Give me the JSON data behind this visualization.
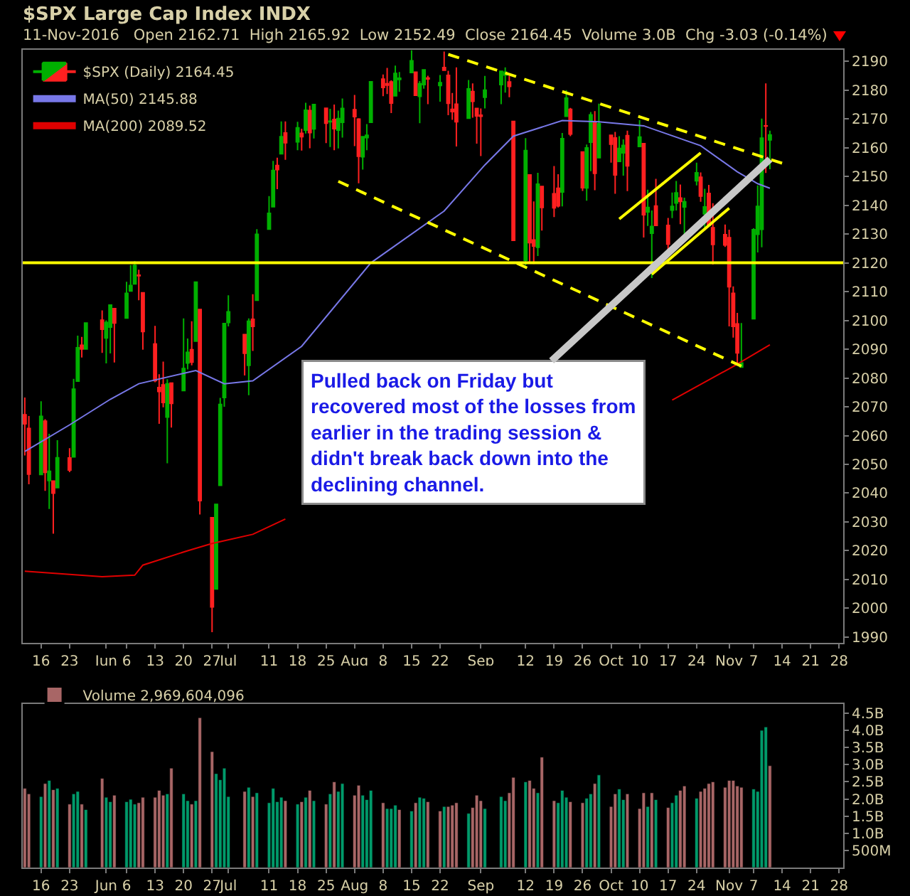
{
  "chart_data": [
    {
      "type": "candlestick",
      "title": "$SPX Large Cap Index INDX",
      "subtitle": "11-Nov-2016   Open 2162.71  High 2165.92  Low 2152.49  Close 2164.45  Volume 3.0B  Chg -3.03 (-0.14%)",
      "x": [
        "2016-05-12",
        "2016-05-13",
        "2016-05-16",
        "2016-05-17",
        "2016-05-18",
        "2016-05-19",
        "2016-05-20",
        "2016-05-23",
        "2016-05-24",
        "2016-05-25",
        "2016-05-26",
        "2016-05-27",
        "2016-05-31",
        "2016-06-01",
        "2016-06-02",
        "2016-06-03",
        "2016-06-06",
        "2016-06-07",
        "2016-06-08",
        "2016-06-09",
        "2016-06-10",
        "2016-06-13",
        "2016-06-14",
        "2016-06-15",
        "2016-06-16",
        "2016-06-17",
        "2016-06-20",
        "2016-06-21",
        "2016-06-22",
        "2016-06-23",
        "2016-06-24",
        "2016-06-27",
        "2016-06-28",
        "2016-06-29",
        "2016-06-30",
        "2016-07-01",
        "2016-07-05",
        "2016-07-06",
        "2016-07-07",
        "2016-07-08",
        "2016-07-11",
        "2016-07-12",
        "2016-07-13",
        "2016-07-14",
        "2016-07-15",
        "2016-07-18",
        "2016-07-19",
        "2016-07-20",
        "2016-07-21",
        "2016-07-22",
        "2016-07-25",
        "2016-07-26",
        "2016-07-27",
        "2016-07-28",
        "2016-07-29",
        "2016-08-01",
        "2016-08-02",
        "2016-08-03",
        "2016-08-04",
        "2016-08-05",
        "2016-08-08",
        "2016-08-09",
        "2016-08-10",
        "2016-08-11",
        "2016-08-12",
        "2016-08-15",
        "2016-08-16",
        "2016-08-17",
        "2016-08-18",
        "2016-08-19",
        "2016-08-22",
        "2016-08-23",
        "2016-08-24",
        "2016-08-25",
        "2016-08-26",
        "2016-08-29",
        "2016-08-30",
        "2016-08-31",
        "2016-09-01",
        "2016-09-02",
        "2016-09-06",
        "2016-09-07",
        "2016-09-08",
        "2016-09-09",
        "2016-09-12",
        "2016-09-13",
        "2016-09-14",
        "2016-09-15",
        "2016-09-16",
        "2016-09-19",
        "2016-09-20",
        "2016-09-21",
        "2016-09-22",
        "2016-09-23",
        "2016-09-26",
        "2016-09-27",
        "2016-09-28",
        "2016-09-29",
        "2016-09-30",
        "2016-10-03",
        "2016-10-04",
        "2016-10-05",
        "2016-10-06",
        "2016-10-07",
        "2016-10-10",
        "2016-10-11",
        "2016-10-12",
        "2016-10-13",
        "2016-10-14",
        "2016-10-17",
        "2016-10-18",
        "2016-10-19",
        "2016-10-20",
        "2016-10-21",
        "2016-10-24",
        "2016-10-25",
        "2016-10-26",
        "2016-10-27",
        "2016-10-28",
        "2016-10-31",
        "2016-11-01",
        "2016-11-02",
        "2016-11-03",
        "2016-11-04",
        "2016-11-07",
        "2016-11-08",
        "2016-11-09",
        "2016-11-10",
        "2016-11-11"
      ],
      "series": [
        {
          "name": "$SPX (Daily) 2164.45",
          "ohlc": [
            [
              2067.2,
              2073.2,
              2053.1,
              2064.1
            ],
            [
              2062.5,
              2066.8,
              2043.1,
              2046.6
            ],
            [
              2046.5,
              2071.9,
              2046.5,
              2066.7
            ],
            [
              2065.0,
              2065.7,
              2040.8,
              2047.2
            ],
            [
              2044.4,
              2060.6,
              2034.5,
              2047.6
            ],
            [
              2044.2,
              2044.2,
              2025.9,
              2040.0
            ],
            [
              2041.9,
              2058.4,
              2041.9,
              2052.3
            ],
            [
              2052.2,
              2055.6,
              2047.3,
              2048.0
            ],
            [
              2052.6,
              2079.7,
              2052.6,
              2076.1
            ],
            [
              2078.9,
              2094.7,
              2078.9,
              2090.5
            ],
            [
              2091.4,
              2094.3,
              2087.1,
              2090.1
            ],
            [
              2090.1,
              2099.1,
              2090.1,
              2099.1
            ],
            [
              2100.1,
              2103.5,
              2088.7,
              2096.9
            ],
            [
              2093.9,
              2100.0,
              2085.1,
              2099.3
            ],
            [
              2097.7,
              2105.3,
              2088.5,
              2105.3
            ],
            [
              2104.1,
              2104.1,
              2085.4,
              2099.1
            ],
            [
              2100.8,
              2113.4,
              2100.8,
              2109.4
            ],
            [
              2110.2,
              2119.2,
              2110.2,
              2112.1
            ],
            [
              2112.7,
              2120.6,
              2112.7,
              2119.1
            ],
            [
              2115.7,
              2117.6,
              2107.0,
              2115.5
            ],
            [
              2109.6,
              2109.6,
              2089.8,
              2096.1
            ],
            [
              2091.8,
              2098.1,
              2078.5,
              2079.1
            ],
            [
              2076.7,
              2081.3,
              2064.1,
              2075.3
            ],
            [
              2077.6,
              2085.7,
              2069.8,
              2071.5
            ],
            [
              2066.4,
              2079.6,
              2050.4,
              2078.0
            ],
            [
              2078.2,
              2078.2,
              2062.8,
              2071.2
            ],
            [
              2075.6,
              2100.7,
              2075.6,
              2083.3
            ],
            [
              2085.2,
              2093.7,
              2083.0,
              2088.9
            ],
            [
              2089.8,
              2099.7,
              2084.4,
              2085.5
            ],
            [
              2092.8,
              2113.3,
              2092.8,
              2113.3
            ],
            [
              2103.8,
              2103.8,
              2032.6,
              2037.4
            ],
            [
              2031.5,
              2031.5,
              1991.7,
              2000.5
            ],
            [
              2006.7,
              2036.1,
              2006.7,
              2036.1
            ],
            [
              2042.7,
              2073.1,
              2042.7,
              2070.8
            ],
            [
              2073.2,
              2098.9,
              2070.0,
              2098.9
            ],
            [
              2099.3,
              2108.7,
              2097.9,
              2103.0
            ],
            [
              2095.1,
              2095.1,
              2080.9,
              2088.6
            ],
            [
              2084.4,
              2100.7,
              2074.0,
              2099.7
            ],
            [
              2100.4,
              2109.1,
              2089.4,
              2097.9
            ],
            [
              2107.0,
              2131.7,
              2107.0,
              2129.9
            ],
            [
              2131.7,
              2143.2,
              2131.7,
              2137.2
            ],
            [
              2139.5,
              2155.4,
              2139.5,
              2152.1
            ],
            [
              2153.8,
              2156.5,
              2145.6,
              2152.4
            ],
            [
              2157.9,
              2169.1,
              2157.9,
              2163.8
            ],
            [
              2165.1,
              2169.1,
              2155.8,
              2161.7
            ],
            [
              2162.0,
              2169.0,
              2159.1,
              2166.9
            ],
            [
              2165.0,
              2166.6,
              2159.0,
              2163.8
            ],
            [
              2166.1,
              2175.6,
              2164.9,
              2173.0
            ],
            [
              2172.9,
              2174.6,
              2159.8,
              2165.2
            ],
            [
              2166.5,
              2175.1,
              2163.2,
              2175.0
            ],
            [
              2173.7,
              2173.7,
              2161.6,
              2168.5
            ],
            [
              2169.0,
              2173.5,
              2160.2,
              2169.2
            ],
            [
              2169.8,
              2175.0,
              2159.1,
              2166.6
            ],
            [
              2166.1,
              2172.9,
              2159.7,
              2170.1
            ],
            [
              2168.8,
              2177.1,
              2163.5,
              2173.6
            ],
            [
              2173.2,
              2178.3,
              2160.5,
              2170.8
            ],
            [
              2169.9,
              2170.2,
              2147.6,
              2157.0
            ],
            [
              2156.8,
              2163.8,
              2152.4,
              2163.8
            ],
            [
              2163.5,
              2168.2,
              2159.1,
              2164.3
            ],
            [
              2168.8,
              2182.9,
              2168.8,
              2182.9
            ],
            [
              2183.8,
              2185.4,
              2177.9,
              2180.9
            ],
            [
              2182.2,
              2187.7,
              2178.6,
              2181.7
            ],
            [
              2182.8,
              2183.4,
              2172.0,
              2175.5
            ],
            [
              2178.0,
              2188.5,
              2178.0,
              2185.8
            ],
            [
              2183.7,
              2186.3,
              2179.4,
              2184.1
            ],
            [
              2186.1,
              2193.8,
              2186.1,
              2190.2
            ],
            [
              2186.2,
              2186.2,
              2178.1,
              2178.2
            ],
            [
              2177.8,
              2183.1,
              2168.5,
              2182.2
            ],
            [
              2181.9,
              2187.0,
              2180.5,
              2187.0
            ],
            [
              2184.2,
              2185.0,
              2175.1,
              2183.9
            ],
            [
              2181.6,
              2185.2,
              2176.0,
              2182.6
            ],
            [
              2187.8,
              2193.4,
              2186.8,
              2186.9
            ],
            [
              2185.1,
              2186.7,
              2171.3,
              2175.4
            ],
            [
              2173.3,
              2179.0,
              2169.7,
              2172.5
            ],
            [
              2175.1,
              2187.9,
              2160.4,
              2169.0
            ],
            [
              2170.2,
              2183.5,
              2170.2,
              2180.4
            ],
            [
              2179.5,
              2182.3,
              2170.4,
              2176.1
            ],
            [
              2173.6,
              2173.6,
              2161.4,
              2171.0
            ],
            [
              2171.3,
              2173.6,
              2157.1,
              2170.9
            ],
            [
              2177.5,
              2184.9,
              2173.6,
              2180.0
            ],
            [
              2181.9,
              2186.6,
              2175.1,
              2186.5
            ],
            [
              2185.2,
              2187.9,
              2179.1,
              2186.2
            ],
            [
              2182.8,
              2184.9,
              2177.5,
              2181.3
            ],
            [
              2169.1,
              2169.1,
              2127.8,
              2127.8
            ],
            [
              2120.9,
              2163.3,
              2119.1,
              2159.0
            ],
            [
              2150.5,
              2150.5,
              2120.3,
              2127.0
            ],
            [
              2127.9,
              2141.3,
              2119.6,
              2125.8
            ],
            [
              2125.4,
              2151.3,
              2122.4,
              2147.3
            ],
            [
              2146.5,
              2146.5,
              2131.2,
              2139.2
            ],
            [
              2144.0,
              2153.6,
              2135.9,
              2139.1
            ],
            [
              2145.9,
              2150.8,
              2139.2,
              2139.8
            ],
            [
              2144.6,
              2165.1,
              2139.6,
              2163.1
            ],
            [
              2170.9,
              2180.0,
              2170.9,
              2177.2
            ],
            [
              2173.3,
              2173.8,
              2164.0,
              2164.7
            ],
            [
              2158.5,
              2158.5,
              2145.0,
              2146.1
            ],
            [
              2146.0,
              2161.1,
              2141.6,
              2159.9
            ],
            [
              2161.9,
              2172.4,
              2151.8,
              2171.4
            ],
            [
              2168.9,
              2172.7,
              2145.2,
              2151.1
            ],
            [
              2156.5,
              2175.3,
              2156.5,
              2168.3
            ],
            [
              2164.3,
              2164.4,
              2154.8,
              2161.2
            ],
            [
              2163.4,
              2165.5,
              2144.0,
              2150.5
            ],
            [
              2155.2,
              2164.0,
              2155.2,
              2159.7
            ],
            [
              2158.2,
              2162.9,
              2150.3,
              2160.8
            ],
            [
              2164.2,
              2165.9,
              2144.9,
              2153.7
            ],
            [
              2160.4,
              2169.6,
              2160.4,
              2163.7
            ],
            [
              2161.4,
              2161.6,
              2128.8,
              2136.7
            ],
            [
              2137.7,
              2145.4,
              2132.8,
              2139.2
            ],
            [
              2130.3,
              2138.2,
              2114.7,
              2132.6
            ],
            [
              2139.7,
              2149.2,
              2133.0,
              2133.0
            ],
            [
              2133.0,
              2135.6,
              2124.4,
              2126.5
            ],
            [
              2138.3,
              2144.4,
              2135.5,
              2139.6
            ],
            [
              2140.8,
              2148.4,
              2138.2,
              2144.3
            ],
            [
              2142.5,
              2147.2,
              2133.4,
              2141.3
            ],
            [
              2139.4,
              2142.6,
              2130.1,
              2141.2
            ],
            [
              2148.5,
              2154.8,
              2146.9,
              2151.3
            ],
            [
              2149.7,
              2151.4,
              2141.2,
              2143.2
            ],
            [
              2137.0,
              2145.7,
              2131.6,
              2139.4
            ],
            [
              2144.1,
              2147.1,
              2132.5,
              2133.0
            ],
            [
              2132.2,
              2140.7,
              2119.4,
              2126.4
            ],
            [
              2129.8,
              2133.3,
              2125.5,
              2126.2
            ],
            [
              2128.7,
              2131.5,
              2097.9,
              2111.7
            ],
            [
              2109.4,
              2111.8,
              2094.0,
              2097.9
            ],
            [
              2098.8,
              2102.6,
              2085.2,
              2088.7
            ],
            [
              2083.8,
              2099.1,
              2083.8,
              2085.2
            ],
            [
              2100.6,
              2132.0,
              2100.6,
              2131.5
            ],
            [
              2129.9,
              2146.9,
              2123.6,
              2139.6
            ],
            [
              2131.6,
              2170.1,
              2125.4,
              2163.3
            ],
            [
              2167.6,
              2182.3,
              2151.2,
              2167.5
            ],
            [
              2162.71,
              2165.92,
              2152.49,
              2164.45
            ]
          ],
          "colors": [
            "#ff2020",
            "#ff2020",
            "#00b000",
            "#ff2020",
            "#00b000",
            "#ff2020",
            "#00b000",
            "#ff2020",
            "#00b000",
            "#00b000",
            "#ff2020",
            "#00b000",
            "#ff2020",
            "#00b000",
            "#00b000",
            "#ff2020",
            "#00b000",
            "#00b000",
            "#00b000",
            "#ff2020",
            "#ff2020",
            "#ff2020",
            "#ff2020",
            "#ff2020",
            "#00b000",
            "#ff2020",
            "#00b000",
            "#00b000",
            "#ff2020",
            "#00b000",
            "#ff2020",
            "#ff2020",
            "#00b000",
            "#00b000",
            "#00b000",
            "#00b000",
            "#ff2020",
            "#00b000",
            "#ff2020",
            "#00b000",
            "#00b000",
            "#00b000",
            "#ff2020",
            "#00b000",
            "#ff2020",
            "#00b000",
            "#ff2020",
            "#00b000",
            "#ff2020",
            "#00b000",
            "#ff2020",
            "#00b000",
            "#ff2020",
            "#00b000",
            "#00b000",
            "#ff2020",
            "#ff2020",
            "#00b000",
            "#00b000",
            "#00b000",
            "#ff2020",
            "#ff2020",
            "#ff2020",
            "#00b000",
            "#00b000",
            "#00b000",
            "#ff2020",
            "#00b000",
            "#00b000",
            "#ff2020",
            "#00b000",
            "#ff2020",
            "#ff2020",
            "#ff2020",
            "#ff2020",
            "#00b000",
            "#ff2020",
            "#ff2020",
            "#ff2020",
            "#00b000",
            "#00b000",
            "#00b000",
            "#ff2020",
            "#ff2020",
            "#00b000",
            "#ff2020",
            "#ff2020",
            "#00b000",
            "#ff2020",
            "#ff2020",
            "#ff2020",
            "#00b000",
            "#00b000",
            "#ff2020",
            "#ff2020",
            "#00b000",
            "#00b000",
            "#ff2020",
            "#00b000",
            "#ff2020",
            "#ff2020",
            "#00b000",
            "#00b000",
            "#ff2020",
            "#00b000",
            "#ff2020",
            "#00b000",
            "#00b000",
            "#ff2020",
            "#ff2020",
            "#00b000",
            "#00b000",
            "#ff2020",
            "#00b000",
            "#00b000",
            "#ff2020",
            "#00b000",
            "#ff2020",
            "#ff2020",
            "#ff2020",
            "#ff2020",
            "#ff2020",
            "#ff2020",
            "#00b000",
            "#00b000",
            "#00b000",
            "#00b000",
            "#ff2020",
            "#00b000"
          ]
        },
        {
          "type": "line",
          "name": "MA(50) 2145.88",
          "color": "#7878e8",
          "x": [
            "2016-05-12",
            "2016-05-23",
            "2016-06-02",
            "2016-06-09",
            "2016-06-23",
            "2016-06-30",
            "2016-07-07",
            "2016-07-19",
            "2016-08-05",
            "2016-08-23",
            "2016-09-02",
            "2016-09-09",
            "2016-09-21",
            "2016-09-30",
            "2016-10-11",
            "2016-10-25",
            "2016-11-03",
            "2016-11-08",
            "2016-11-11"
          ],
          "values": [
            2054.5,
            2063.7,
            2072.6,
            2078,
            2082.6,
            2078,
            2079,
            2091,
            2120,
            2138,
            2154,
            2164,
            2169.4,
            2169,
            2167.6,
            2160.7,
            2151.6,
            2147.5,
            2145.9
          ]
        },
        {
          "type": "line",
          "name": "MA(200) 2089.52",
          "color": "#e00000",
          "x": [
            "2016-05-12",
            "2016-05-31",
            "2016-06-08",
            "2016-06-10",
            "2016-06-21",
            "2016-06-27",
            "2016-07-07",
            "2016-07-15",
            "2016-08-15",
            "2016-10-18",
            "2016-11-02",
            "2016-11-11"
          ],
          "values": [
            2012.9,
            2011,
            2011.5,
            2015,
            2020,
            2022.5,
            2025.7,
            2031,
            null,
            2072.3,
            2084,
            2091.5
          ]
        },
        {
          "type": "line",
          "color": "#ffff00",
          "line_style": "dashed",
          "x": [
            "2016-08-24",
            "2016-11-14"
          ],
          "values": [
            2192.4,
            2154.6
          ]
        },
        {
          "type": "line",
          "color": "#ffff00",
          "line_style": "dashed",
          "x": [
            "2016-07-28",
            "2016-11-04"
          ],
          "values": [
            2148.3,
            2084.1
          ]
        },
        {
          "type": "line",
          "color": "#ffff00",
          "line_style": "solid",
          "x": [
            "2016-10-05",
            "2016-10-25"
          ],
          "values": [
            2135.2,
            2158.2
          ]
        },
        {
          "type": "line",
          "color": "#ffff00",
          "line_style": "solid",
          "x": [
            "2016-10-13",
            "2016-11-01"
          ],
          "values": [
            2116,
            2139
          ]
        }
      ],
      "ref_lines": [
        {
          "axis": "y",
          "value": 2120,
          "color": "#ffff00"
        }
      ],
      "annotations": [
        {
          "text": "Pulled back on Friday but\nrecovered most of the losses from\nearlier in the trading session &\ndidn't break back down into the\ndeclining channel.",
          "x": "2016-11-11",
          "y": 2156
        }
      ],
      "xlim": [
        "2016-05-11T12:00",
        "2016-11-29"
      ],
      "xticks": [
        {
          "value": "2016-05-16",
          "label": "16"
        },
        {
          "value": "2016-05-23",
          "label": "23"
        },
        {
          "value": "2016-06-01",
          "label": "Jun"
        },
        {
          "value": "2016-06-06",
          "label": "6"
        },
        {
          "value": "2016-06-13",
          "label": "13"
        },
        {
          "value": "2016-06-20",
          "label": "20"
        },
        {
          "value": "2016-06-27",
          "label": "27"
        },
        {
          "value": "2016-07-01",
          "label": "Jul"
        },
        {
          "value": "2016-07-11",
          "label": "11"
        },
        {
          "value": "2016-07-18",
          "label": "18"
        },
        {
          "value": "2016-07-25",
          "label": "25"
        },
        {
          "value": "2016-08-01",
          "label": "Aug"
        },
        {
          "value": "2016-08-08",
          "label": "8"
        },
        {
          "value": "2016-08-15",
          "label": "15"
        },
        {
          "value": "2016-08-22",
          "label": "22"
        },
        {
          "value": "2016-09-01",
          "label": "Sep"
        },
        {
          "value": "2016-09-12",
          "label": "12"
        },
        {
          "value": "2016-09-19",
          "label": "19"
        },
        {
          "value": "2016-09-26",
          "label": "26"
        },
        {
          "value": "2016-10-03",
          "label": "Oct"
        },
        {
          "value": "2016-10-10",
          "label": "10"
        },
        {
          "value": "2016-10-17",
          "label": "17"
        },
        {
          "value": "2016-10-24",
          "label": "24"
        },
        {
          "value": "2016-11-01",
          "label": "Nov"
        },
        {
          "value": "2016-11-07",
          "label": "7"
        },
        {
          "value": "2016-11-14",
          "label": "14"
        },
        {
          "value": "2016-11-21",
          "label": "21"
        },
        {
          "value": "2016-11-28",
          "label": "28"
        }
      ],
      "ylim": [
        1988,
        2194
      ],
      "yticks": [
        1990,
        2000,
        2010,
        2020,
        2030,
        2040,
        2050,
        2060,
        2070,
        2080,
        2090,
        2100,
        2110,
        2120,
        2130,
        2140,
        2150,
        2160,
        2170,
        2180,
        2190
      ],
      "legend": "top left"
    },
    {
      "type": "bar",
      "x": [
        "2016-05-12",
        "2016-05-13",
        "2016-05-16",
        "2016-05-17",
        "2016-05-18",
        "2016-05-19",
        "2016-05-20",
        "2016-05-23",
        "2016-05-24",
        "2016-05-25",
        "2016-05-26",
        "2016-05-27",
        "2016-05-31",
        "2016-06-01",
        "2016-06-02",
        "2016-06-03",
        "2016-06-06",
        "2016-06-07",
        "2016-06-08",
        "2016-06-09",
        "2016-06-10",
        "2016-06-13",
        "2016-06-14",
        "2016-06-15",
        "2016-06-16",
        "2016-06-17",
        "2016-06-20",
        "2016-06-21",
        "2016-06-22",
        "2016-06-23",
        "2016-06-24",
        "2016-06-27",
        "2016-06-28",
        "2016-06-29",
        "2016-06-30",
        "2016-07-01",
        "2016-07-05",
        "2016-07-06",
        "2016-07-07",
        "2016-07-08",
        "2016-07-11",
        "2016-07-12",
        "2016-07-13",
        "2016-07-14",
        "2016-07-15",
        "2016-07-18",
        "2016-07-19",
        "2016-07-20",
        "2016-07-21",
        "2016-07-22",
        "2016-07-25",
        "2016-07-26",
        "2016-07-27",
        "2016-07-28",
        "2016-07-29",
        "2016-08-01",
        "2016-08-02",
        "2016-08-03",
        "2016-08-04",
        "2016-08-05",
        "2016-08-08",
        "2016-08-09",
        "2016-08-10",
        "2016-08-11",
        "2016-08-12",
        "2016-08-15",
        "2016-08-16",
        "2016-08-17",
        "2016-08-18",
        "2016-08-19",
        "2016-08-22",
        "2016-08-23",
        "2016-08-24",
        "2016-08-25",
        "2016-08-26",
        "2016-08-29",
        "2016-08-30",
        "2016-08-31",
        "2016-09-01",
        "2016-09-02",
        "2016-09-06",
        "2016-09-07",
        "2016-09-08",
        "2016-09-09",
        "2016-09-12",
        "2016-09-13",
        "2016-09-14",
        "2016-09-15",
        "2016-09-16",
        "2016-09-19",
        "2016-09-20",
        "2016-09-21",
        "2016-09-22",
        "2016-09-23",
        "2016-09-26",
        "2016-09-27",
        "2016-09-28",
        "2016-09-29",
        "2016-09-30",
        "2016-10-03",
        "2016-10-04",
        "2016-10-05",
        "2016-10-06",
        "2016-10-07",
        "2016-10-10",
        "2016-10-11",
        "2016-10-12",
        "2016-10-13",
        "2016-10-14",
        "2016-10-17",
        "2016-10-18",
        "2016-10-19",
        "2016-10-20",
        "2016-10-21",
        "2016-10-24",
        "2016-10-25",
        "2016-10-26",
        "2016-10-27",
        "2016-10-28",
        "2016-10-31",
        "2016-11-01",
        "2016-11-02",
        "2016-11-03",
        "2016-11-04",
        "2016-11-07",
        "2016-11-08",
        "2016-11-09",
        "2016-11-10",
        "2016-11-11"
      ],
      "series": [
        {
          "name": "Volume 2,969,604,096",
          "values": [
            2310000000.0,
            2150000000.0,
            2070000000.0,
            2450000000.0,
            2540000000.0,
            2270000000.0,
            2310000000.0,
            1850000000.0,
            2150000000.0,
            2220000000.0,
            1850000000.0,
            1690000000.0,
            2600000000.0,
            2050000000.0,
            1920000000.0,
            2110000000.0,
            1920000000.0,
            1990000000.0,
            1850000000.0,
            1890000000.0,
            2050000000.0,
            2050000000.0,
            2250000000.0,
            2110000000.0,
            2150000000.0,
            2900000000.0,
            2150000000.0,
            1950000000.0,
            1850000000.0,
            1950000000.0,
            4370000000.0,
            3380000000.0,
            2740000000.0,
            2560000000.0,
            2900000000.0,
            2070000000.0,
            2220000000.0,
            2340000000.0,
            2070000000.0,
            2180000000.0,
            1890000000.0,
            2310000000.0,
            1920000000.0,
            2050000000.0,
            1950000000.0,
            1850000000.0,
            1920000000.0,
            2050000000.0,
            2250000000.0,
            1950000000.0,
            1850000000.0,
            2150000000.0,
            2500000000.0,
            2220000000.0,
            2450000000.0,
            2110000000.0,
            2400000000.0,
            2110000000.0,
            1980000000.0,
            2250000000.0,
            1890000000.0,
            1720000000.0,
            1720000000.0,
            1820000000.0,
            1690000000.0,
            1650000000.0,
            1890000000.0,
            2050000000.0,
            2020000000.0,
            1920000000.0,
            1650000000.0,
            1780000000.0,
            1780000000.0,
            1820000000.0,
            1890000000.0,
            1580000000.0,
            1750000000.0,
            2110000000.0,
            1950000000.0,
            1720000000.0,
            2070000000.0,
            1950000000.0,
            2180000000.0,
            2630000000.0,
            2500000000.0,
            2540000000.0,
            2310000000.0,
            2180000000.0,
            3220000000.0,
            1950000000.0,
            1890000000.0,
            2250000000.0,
            2050000000.0,
            1920000000.0,
            1890000000.0,
            2020000000.0,
            2150000000.0,
            2450000000.0,
            2700000000.0,
            1780000000.0,
            2150000000.0,
            2290000000.0,
            1980000000.0,
            2150000000.0,
            1720000000.0,
            2180000000.0,
            1780000000.0,
            2180000000.0,
            1980000000.0,
            1750000000.0,
            1890000000.0,
            2110000000.0,
            2250000000.0,
            2380000000.0,
            2020000000.0,
            2220000000.0,
            2310000000.0,
            2450000000.0,
            2500000000.0,
            2340000000.0,
            2540000000.0,
            2540000000.0,
            2380000000.0,
            2340000000.0,
            2290000000.0,
            2220000000.0,
            4000000000.0,
            4100000000.0,
            2970000000.0
          ],
          "colors": [
            "#a86666",
            "#a86666",
            "#009a6a",
            "#a86666",
            "#009a6a",
            "#a86666",
            "#009a6a",
            "#a86666",
            "#009a6a",
            "#009a6a",
            "#a86666",
            "#009a6a",
            "#a86666",
            "#009a6a",
            "#009a6a",
            "#a86666",
            "#009a6a",
            "#009a6a",
            "#009a6a",
            "#a86666",
            "#a86666",
            "#a86666",
            "#a86666",
            "#a86666",
            "#009a6a",
            "#a86666",
            "#009a6a",
            "#009a6a",
            "#a86666",
            "#009a6a",
            "#a86666",
            "#a86666",
            "#009a6a",
            "#009a6a",
            "#009a6a",
            "#009a6a",
            "#a86666",
            "#009a6a",
            "#a86666",
            "#009a6a",
            "#009a6a",
            "#009a6a",
            "#009a6a",
            "#009a6a",
            "#a86666",
            "#009a6a",
            "#a86666",
            "#009a6a",
            "#a86666",
            "#009a6a",
            "#a86666",
            "#009a6a",
            "#a86666",
            "#009a6a",
            "#009a6a",
            "#a86666",
            "#a86666",
            "#009a6a",
            "#009a6a",
            "#009a6a",
            "#a86666",
            "#009a6a",
            "#009a6a",
            "#009a6a",
            "#a86666",
            "#009a6a",
            "#a86666",
            "#009a6a",
            "#009a6a",
            "#a86666",
            "#a86666",
            "#009a6a",
            "#a86666",
            "#a86666",
            "#a86666",
            "#009a6a",
            "#a86666",
            "#a86666",
            "#a86666",
            "#009a6a",
            "#009a6a",
            "#009a6a",
            "#a86666",
            "#a86666",
            "#009a6a",
            "#a86666",
            "#a86666",
            "#009a6a",
            "#a86666",
            "#a86666",
            "#009a6a",
            "#009a6a",
            "#009a6a",
            "#a86666",
            "#a86666",
            "#009a6a",
            "#009a6a",
            "#a86666",
            "#009a6a",
            "#a86666",
            "#a86666",
            "#009a6a",
            "#009a6a",
            "#a86666",
            "#a86666",
            "#a86666",
            "#009a6a",
            "#a86666",
            "#009a6a",
            "#a86666",
            "#009a6a",
            "#009a6a",
            "#a86666",
            "#a86666",
            "#009a6a",
            "#a86666",
            "#a86666",
            "#a86666",
            "#a86666",
            "#a86666",
            "#a86666",
            "#a86666",
            "#a86666",
            "#a86666",
            "#009a6a",
            "#009a6a",
            "#009a6a",
            "#009a6a",
            "#a86666"
          ]
        }
      ],
      "xlim": [
        "2016-05-11T12:00",
        "2016-11-29"
      ],
      "xticks": [
        {
          "value": "2016-05-16",
          "label": "16"
        },
        {
          "value": "2016-05-23",
          "label": "23"
        },
        {
          "value": "2016-06-01",
          "label": "Jun"
        },
        {
          "value": "2016-06-06",
          "label": "6"
        },
        {
          "value": "2016-06-13",
          "label": "13"
        },
        {
          "value": "2016-06-20",
          "label": "20"
        },
        {
          "value": "2016-06-27",
          "label": "27"
        },
        {
          "value": "2016-07-01",
          "label": "Jul"
        },
        {
          "value": "2016-07-11",
          "label": "11"
        },
        {
          "value": "2016-07-18",
          "label": "18"
        },
        {
          "value": "2016-07-25",
          "label": "25"
        },
        {
          "value": "2016-08-01",
          "label": "Aug"
        },
        {
          "value": "2016-08-08",
          "label": "8"
        },
        {
          "value": "2016-08-15",
          "label": "15"
        },
        {
          "value": "2016-08-22",
          "label": "22"
        },
        {
          "value": "2016-09-01",
          "label": "Sep"
        },
        {
          "value": "2016-09-12",
          "label": "12"
        },
        {
          "value": "2016-09-19",
          "label": "19"
        },
        {
          "value": "2016-09-26",
          "label": "26"
        },
        {
          "value": "2016-10-03",
          "label": "Oct"
        },
        {
          "value": "2016-10-10",
          "label": "10"
        },
        {
          "value": "2016-10-17",
          "label": "17"
        },
        {
          "value": "2016-10-24",
          "label": "24"
        },
        {
          "value": "2016-11-01",
          "label": "Nov"
        },
        {
          "value": "2016-11-07",
          "label": "7"
        },
        {
          "value": "2016-11-14",
          "label": "14"
        },
        {
          "value": "2016-11-21",
          "label": "21"
        },
        {
          "value": "2016-11-28",
          "label": "28"
        }
      ],
      "ylim": [
        0,
        4770000000.0
      ],
      "yticks": [
        {
          "value": 500000000.0,
          "label": "500M"
        },
        {
          "value": 1000000000.0,
          "label": "1.0B"
        },
        {
          "value": 1500000000.0,
          "label": "1.5B"
        },
        {
          "value": 2000000000.0,
          "label": "2.0B"
        },
        {
          "value": 2500000000.0,
          "label": "2.5B"
        },
        {
          "value": 3000000000.0,
          "label": "3.0B"
        },
        {
          "value": 3500000000.0,
          "label": "3.5B"
        },
        {
          "value": 4000000000.0,
          "label": "4.0B"
        },
        {
          "value": 4500000000.0,
          "label": "4.5B"
        }
      ],
      "legend": "top left"
    }
  ]
}
